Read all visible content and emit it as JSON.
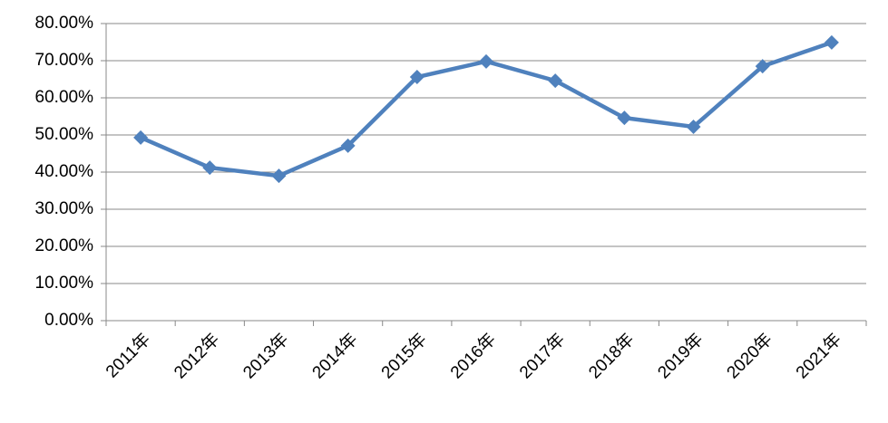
{
  "chart_data": {
    "type": "line",
    "categories": [
      "2011年",
      "2012年",
      "2013年",
      "2014年",
      "2015年",
      "2016年",
      "2017年",
      "2018年",
      "2019年",
      "2020年",
      "2021年"
    ],
    "values": [
      49.3,
      41.2,
      39.0,
      47.1,
      65.6,
      69.8,
      64.6,
      54.6,
      52.2,
      68.5,
      74.9
    ],
    "color": "#4f81bd",
    "ylim": [
      0,
      80
    ],
    "yticks": [
      {
        "value": 0,
        "label": "0.00%"
      },
      {
        "value": 10,
        "label": "10.00%"
      },
      {
        "value": 20,
        "label": "20.00%"
      },
      {
        "value": 30,
        "label": "30.00%"
      },
      {
        "value": 40,
        "label": "40.00%"
      },
      {
        "value": 50,
        "label": "50.00%"
      },
      {
        "value": 60,
        "label": "60.00%"
      },
      {
        "value": 70,
        "label": "70.00%"
      },
      {
        "value": 80,
        "label": "80.00%"
      }
    ],
    "grid": true
  }
}
